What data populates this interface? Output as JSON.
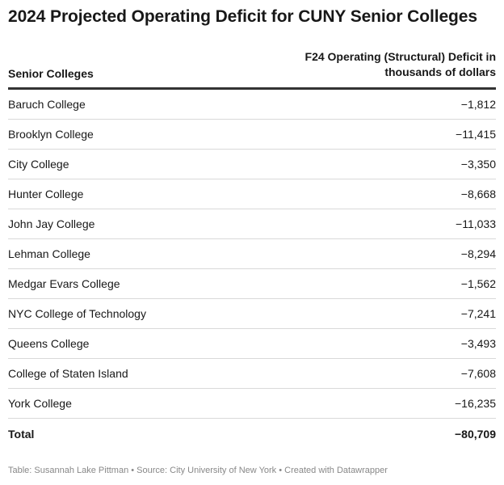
{
  "chart_data": {
    "type": "table",
    "title": "2024 Projected Operating Deficit for CUNY Senior Colleges",
    "columns": [
      "Senior Colleges",
      "F24 Operating (Structural) Deficit in thousands of dollars"
    ],
    "rows": [
      {
        "name": "Baruch College",
        "value": "−1,812"
      },
      {
        "name": "Brooklyn College",
        "value": "−11,415"
      },
      {
        "name": "City College",
        "value": "−3,350"
      },
      {
        "name": "Hunter College",
        "value": "−8,668"
      },
      {
        "name": "John Jay College",
        "value": "−11,033"
      },
      {
        "name": "Lehman College",
        "value": "−8,294"
      },
      {
        "name": "Medgar Evars College",
        "value": "−1,562"
      },
      {
        "name": "NYC College of Technology",
        "value": "−7,241"
      },
      {
        "name": "Queens College",
        "value": "−3,493"
      },
      {
        "name": "College of Staten Island",
        "value": "−7,608"
      },
      {
        "name": "York College",
        "value": "−16,235"
      }
    ],
    "total": {
      "name": "Total",
      "value": "−80,709"
    }
  },
  "header": {
    "col1_label": "Senior Colleges",
    "col2_line1": "F24 Operating (Structural) Deficit in",
    "col2_line2": "thousands of dollars"
  },
  "footer": {
    "text": "Table: Susannah Lake Pittman • Source: City University of New York • Created with Datawrapper"
  },
  "colors": {
    "text": "#181818",
    "header_rule": "#333333",
    "row_rule": "#d9d9d9",
    "footer_text": "#888888"
  }
}
